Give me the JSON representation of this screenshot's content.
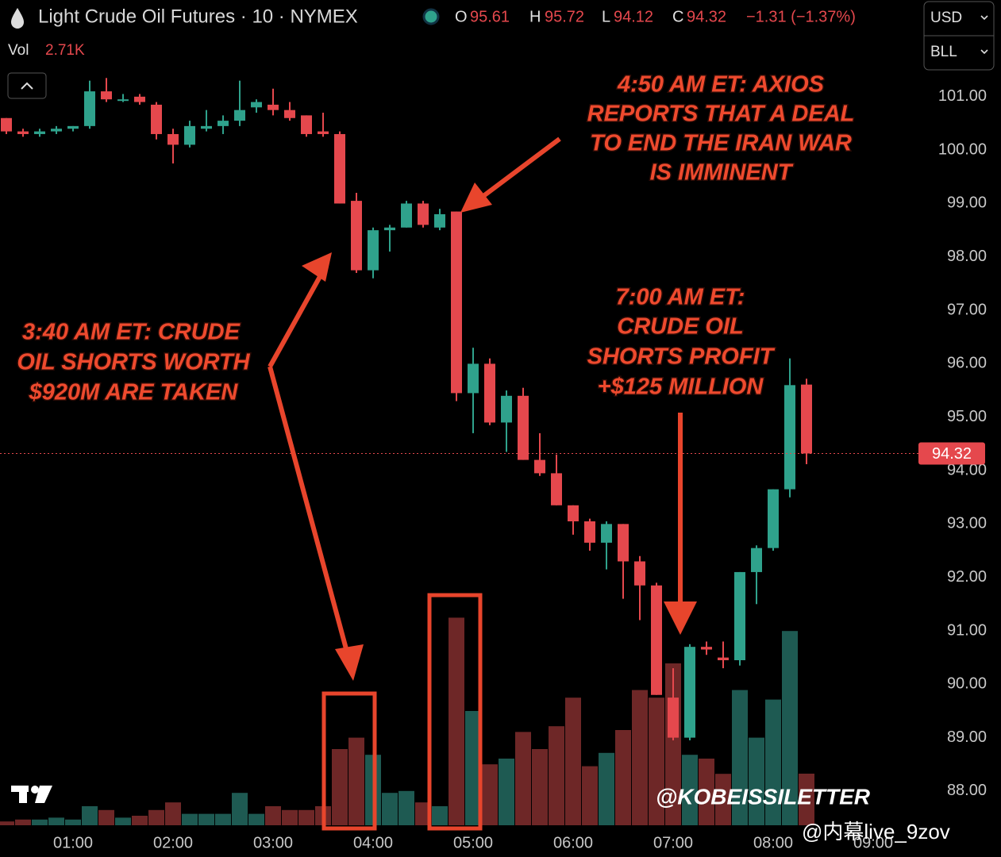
{
  "header": {
    "symbol": "Light Crude Oil Futures · 10 · NYMEX",
    "open_key": "O",
    "high_key": "H",
    "low_key": "L",
    "close_key": "C",
    "change": "−1.31 (−1.37%)",
    "vol_key": "Vol",
    "vol": "2.71K",
    "currency": "USD",
    "unit": "BLL",
    "watermark": "@KOBEISSILETTER",
    "weibo": "@内幕live_9zov"
  },
  "chart_data": {
    "type": "candlestick",
    "categories": [
      null,
      null,
      null,
      null,
      "01:00",
      null,
      null,
      null,
      null,
      null,
      "02:00",
      null,
      null,
      null,
      null,
      null,
      "03:00",
      null,
      null,
      null,
      null,
      null,
      "04:00",
      null,
      null,
      null,
      null,
      null,
      "05:00",
      null,
      null,
      null,
      null,
      null,
      "06:00",
      null,
      null,
      null,
      null,
      null,
      "07:00",
      null,
      null,
      null,
      null,
      null,
      "08:00",
      null,
      null,
      null,
      null,
      null,
      "09:00"
    ],
    "open": [
      100.6,
      100.35,
      100.3,
      100.35,
      100.4,
      100.45,
      101.1,
      100.95,
      101.0,
      100.85,
      100.3,
      100.1,
      100.4,
      100.45,
      100.55,
      100.8,
      100.85,
      100.75,
      100.65,
      100.35,
      100.3,
      99.05,
      97.75,
      98.5,
      98.55,
      99.0,
      98.55,
      98.85,
      95.45,
      96.0,
      94.9,
      95.4,
      94.2,
      93.95,
      93.35,
      93.05,
      92.65,
      93.0,
      92.3,
      91.85,
      89.75,
      89.0,
      90.7,
      90.5,
      90.45,
      92.1,
      92.55,
      93.65,
      95.61,
      null,
      null,
      null,
      null
    ],
    "high": [
      100.6,
      100.4,
      100.4,
      100.45,
      100.45,
      101.3,
      101.35,
      101.05,
      101.05,
      100.9,
      100.4,
      100.55,
      100.75,
      100.65,
      101.3,
      100.95,
      101.15,
      100.9,
      100.65,
      100.7,
      100.35,
      99.2,
      98.55,
      98.6,
      99.05,
      99.05,
      98.9,
      98.85,
      96.3,
      96.1,
      95.5,
      95.55,
      94.7,
      94.3,
      93.35,
      93.1,
      93.05,
      93.0,
      92.4,
      91.9,
      90.3,
      90.75,
      90.8,
      90.8,
      92.1,
      92.6,
      93.65,
      96.1,
      95.72,
      null,
      null,
      null,
      null
    ],
    "low": [
      100.3,
      100.25,
      100.25,
      100.3,
      100.35,
      100.4,
      100.9,
      100.9,
      100.85,
      100.2,
      99.75,
      100.05,
      100.35,
      100.3,
      100.45,
      100.7,
      100.65,
      100.55,
      100.25,
      100.25,
      99.0,
      97.7,
      97.6,
      98.1,
      98.55,
      98.55,
      98.5,
      95.3,
      94.7,
      94.85,
      94.35,
      94.2,
      93.9,
      93.35,
      92.8,
      92.5,
      92.15,
      91.6,
      91.2,
      89.8,
      88.95,
      88.95,
      90.55,
      90.3,
      90.35,
      91.5,
      92.5,
      93.5,
      94.12,
      null,
      null,
      null,
      null
    ],
    "close": [
      100.35,
      100.3,
      100.35,
      100.4,
      100.45,
      101.1,
      100.95,
      100.95,
      100.9,
      100.3,
      100.1,
      100.45,
      100.45,
      100.55,
      100.75,
      100.9,
      100.75,
      100.6,
      100.3,
      100.3,
      99.0,
      97.75,
      98.5,
      98.55,
      99.0,
      98.6,
      98.8,
      95.45,
      96.0,
      94.9,
      95.4,
      94.2,
      93.95,
      93.35,
      93.05,
      92.65,
      93.0,
      92.3,
      91.85,
      89.8,
      89.0,
      90.7,
      90.65,
      90.45,
      92.1,
      92.55,
      93.65,
      95.6,
      94.32,
      null,
      null,
      null,
      null
    ],
    "volume": [
      0.2,
      0.3,
      0.3,
      0.4,
      0.3,
      1.0,
      0.8,
      0.4,
      0.5,
      0.8,
      1.2,
      0.6,
      0.6,
      0.6,
      1.7,
      0.6,
      1.0,
      0.8,
      0.8,
      1.0,
      4.0,
      4.6,
      3.7,
      1.7,
      1.8,
      1.2,
      1.0,
      10.9,
      6.0,
      3.2,
      3.5,
      4.9,
      4.0,
      5.2,
      6.7,
      3.1,
      3.8,
      5.0,
      7.1,
      6.7,
      8.5,
      3.7,
      3.5,
      2.7,
      7.1,
      4.6,
      6.6,
      10.2,
      2.71,
      null,
      null,
      null,
      null
    ],
    "up_color": "#2fa28c",
    "down_color": "#e5484d",
    "up_volume_color": "#1e5a52",
    "down_volume_color": "#6e2727",
    "ylim": [
      87.36,
      102.81
    ],
    "yticks": [
      {
        "value": 88,
        "label": "88.00"
      },
      {
        "value": 89,
        "label": "89.00"
      },
      {
        "value": 90,
        "label": "90.00"
      },
      {
        "value": 91,
        "label": "91.00"
      },
      {
        "value": 92,
        "label": "92.00"
      },
      {
        "value": 93,
        "label": "93.00"
      },
      {
        "value": 94,
        "label": "94.00"
      },
      {
        "value": 95,
        "label": "95.00"
      },
      {
        "value": 96,
        "label": "96.00"
      },
      {
        "value": 97,
        "label": "97.00"
      },
      {
        "value": 98,
        "label": "98.00"
      },
      {
        "value": 99,
        "label": "99.00"
      },
      {
        "value": 100,
        "label": "100.00"
      },
      {
        "value": 101,
        "label": "101.00"
      }
    ],
    "grid": false,
    "annotations": [
      {
        "lines": [
          "4:50 AM ET: AXIOS",
          "REPORTS THAT A DEAL",
          "TO END THE IRAN WAR",
          "IS IMMINENT"
        ]
      },
      {
        "lines": [
          "3:40 AM ET: CRUDE",
          "OIL SHORTS WORTH",
          "$920M ARE TAKEN"
        ]
      },
      {
        "lines": [
          "7:00 AM ET:",
          "CRUDE OIL",
          "SHORTS PROFIT",
          "+$125 MILLION"
        ]
      }
    ]
  }
}
